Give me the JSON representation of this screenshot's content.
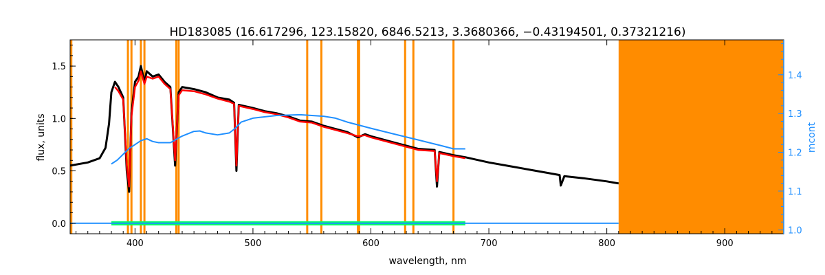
{
  "chart_data": {
    "type": "line",
    "title": "HD183085    (16.617296, 123.15820, 6846.5213, 3.3680366, −0.43194501, 0.37321216)",
    "xlabel": "wavelength, nm",
    "ylabel": "flux, units",
    "y2label": "mcont",
    "xlim": [
      345,
      950
    ],
    "ylim": [
      -0.1,
      1.75
    ],
    "y2lim": [
      0.99,
      1.49
    ],
    "x_ticks": [
      400,
      500,
      600,
      700,
      800,
      900
    ],
    "y_ticks": [
      0.0,
      0.5,
      1.0,
      1.5
    ],
    "y_tick_labels": [
      "0.0",
      "0.5",
      "1.0",
      "1.5"
    ],
    "y2_ticks": [
      1.0,
      1.1,
      1.2,
      1.3,
      1.4
    ],
    "y2_tick_labels": [
      "1.0",
      "1.1",
      "1.2",
      "1.3",
      "1.4"
    ],
    "masked_lines_nm": [
      346,
      394,
      397,
      405,
      408,
      435,
      437,
      546,
      558,
      589,
      590,
      629,
      636,
      670
    ],
    "masked_region_nm": [
      810,
      950
    ],
    "colors": {
      "observed": "#000000",
      "model": "#ff0000",
      "residual": "#00ff66",
      "continuum": "#1f8fff",
      "mask": "#ff8c00",
      "axis": "#000000",
      "right_axis": "#1f8fff"
    },
    "series": [
      {
        "role": "observed",
        "x": [
          345,
          360,
          370,
          375,
          378,
          380,
          383,
          386,
          390,
          393,
          395,
          397,
          400,
          403,
          405,
          408,
          410,
          415,
          420,
          425,
          430,
          434,
          437,
          440,
          450,
          460,
          470,
          480,
          484,
          486,
          488,
          500,
          510,
          520,
          530,
          540,
          550,
          560,
          570,
          580,
          589,
          595,
          600,
          620,
          640,
          654,
          656,
          658,
          670,
          680,
          700,
          720,
          740,
          760,
          761,
          764,
          780,
          800,
          810
        ],
        "values": [
          0.55,
          0.58,
          0.62,
          0.72,
          0.95,
          1.25,
          1.35,
          1.3,
          1.2,
          0.5,
          0.3,
          1.05,
          1.35,
          1.4,
          1.5,
          1.35,
          1.45,
          1.4,
          1.42,
          1.35,
          1.3,
          0.55,
          1.25,
          1.3,
          1.28,
          1.25,
          1.2,
          1.18,
          1.15,
          0.5,
          1.13,
          1.1,
          1.07,
          1.05,
          1.02,
          0.98,
          0.97,
          0.93,
          0.9,
          0.87,
          0.82,
          0.85,
          0.83,
          0.77,
          0.71,
          0.7,
          0.35,
          0.68,
          0.65,
          0.63,
          0.58,
          0.54,
          0.5,
          0.46,
          0.36,
          0.45,
          0.43,
          0.4,
          0.38
        ]
      },
      {
        "role": "model",
        "x": [
          383,
          386,
          390,
          393,
          395,
          397,
          400,
          403,
          405,
          408,
          410,
          415,
          420,
          425,
          430,
          434,
          437,
          440,
          450,
          460,
          470,
          480,
          484,
          486,
          488,
          500,
          510,
          520,
          530,
          540,
          550,
          560,
          570,
          580,
          589,
          595,
          600,
          620,
          640,
          654,
          656,
          658,
          670,
          680
        ],
        "values": [
          1.3,
          1.26,
          1.18,
          0.55,
          0.35,
          1.02,
          1.3,
          1.36,
          1.45,
          1.33,
          1.4,
          1.38,
          1.4,
          1.33,
          1.28,
          0.6,
          1.22,
          1.27,
          1.26,
          1.23,
          1.19,
          1.16,
          1.14,
          0.55,
          1.12,
          1.09,
          1.06,
          1.04,
          1.01,
          0.97,
          0.96,
          0.92,
          0.89,
          0.86,
          0.83,
          0.84,
          0.82,
          0.76,
          0.7,
          0.69,
          0.4,
          0.67,
          0.64,
          0.62
        ]
      },
      {
        "role": "continuum",
        "axis": "right",
        "x": [
          380,
          385,
          390,
          395,
          400,
          405,
          410,
          415,
          420,
          430,
          440,
          450,
          455,
          460,
          470,
          480,
          485,
          490,
          500,
          520,
          540,
          560,
          570,
          580,
          600,
          620,
          640,
          660,
          670,
          680
        ],
        "values": [
          1.17,
          1.18,
          1.195,
          1.21,
          1.22,
          1.23,
          1.235,
          1.228,
          1.225,
          1.225,
          1.242,
          1.254,
          1.255,
          1.25,
          1.245,
          1.25,
          1.262,
          1.278,
          1.288,
          1.295,
          1.297,
          1.293,
          1.288,
          1.278,
          1.262,
          1.247,
          1.232,
          1.217,
          1.209,
          1.209
        ]
      },
      {
        "role": "continuum-baseline",
        "x": [
          345,
          380,
          680,
          760,
          810
        ],
        "values": [
          0.0,
          0.0,
          0.0,
          0.0,
          0.0
        ]
      },
      {
        "role": "residual",
        "x": [
          380,
          680
        ],
        "values": [
          0.0,
          0.0
        ]
      }
    ]
  }
}
